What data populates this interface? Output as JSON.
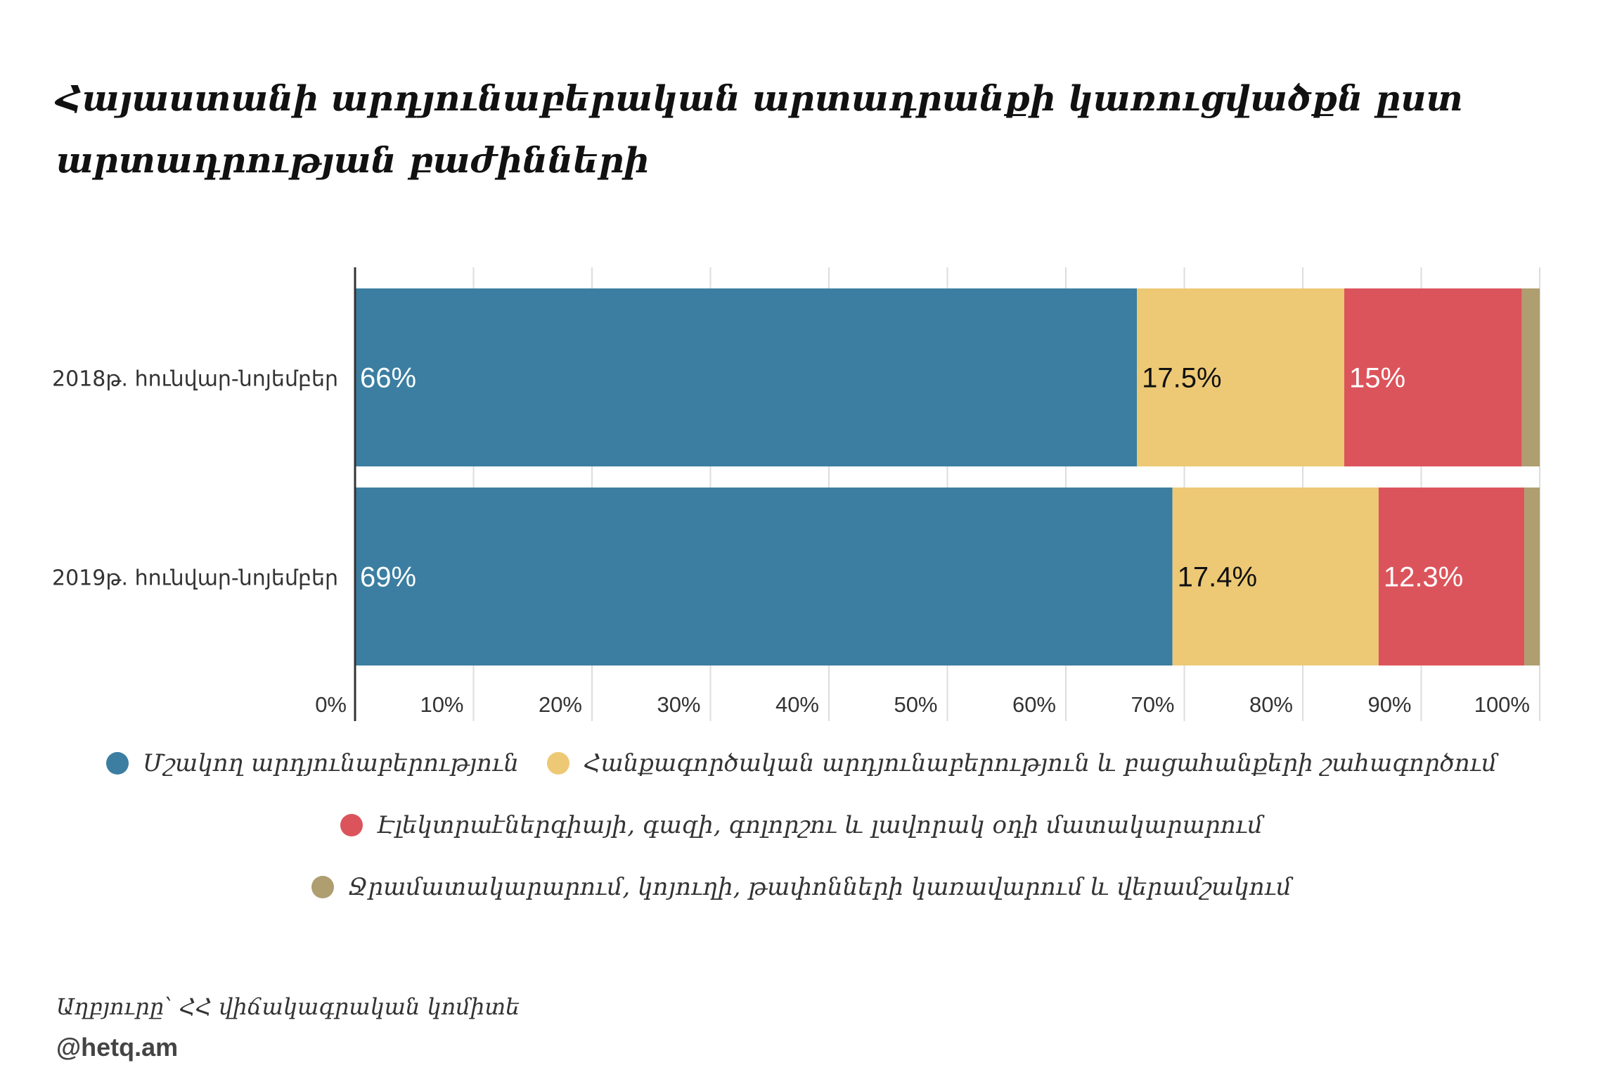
{
  "title": "Հայաստանի արդյունաբերական արտադրանքի կառուցվածքն ըստ արտադրության բաժինների",
  "chart_data": {
    "type": "bar",
    "orientation": "horizontal",
    "stacked": true,
    "categories": [
      "2018թ. հունվար-նոյեմբեր",
      "2019թ. հունվար-նոյեմբեր"
    ],
    "series": [
      {
        "name": "Մշակող արդյունաբերություն",
        "color": "#3b7ea1",
        "values": [
          66,
          69
        ],
        "labels": [
          "66%",
          "69%"
        ],
        "label_color": "#ffffff"
      },
      {
        "name": "Հանքագործական արդյունաբերություն և բացահանքերի շահագործում",
        "color": "#edc975",
        "values": [
          17.5,
          17.4
        ],
        "labels": [
          "17.5%",
          "17.4%"
        ],
        "label_color": "#111111"
      },
      {
        "name": "Էլեկտրաէներգիայի, գազի, գոլորշու և լավորակ օդի մատակարարում",
        "color": "#dc545b",
        "values": [
          15,
          12.3
        ],
        "labels": [
          "15%",
          "12.3%"
        ],
        "label_color": "#ffffff"
      },
      {
        "name": "Ջրամատակարարում, կոյուղի, թափոնների կառավարում և վերամշակում",
        "color": "#ae9e70",
        "values": [
          1.5,
          1.3
        ],
        "labels": [
          "",
          ""
        ],
        "label_color": "#ffffff"
      }
    ],
    "xlim": [
      0,
      100
    ],
    "xticks": [
      "0%",
      "10%",
      "20%",
      "30%",
      "40%",
      "50%",
      "60%",
      "70%",
      "80%",
      "90%",
      "100%"
    ],
    "grid": true,
    "legend_position": "bottom"
  },
  "source": "Աղբյուրը՝ ՀՀ վիճակագրական կոմիտե",
  "credit": "@hetq.am"
}
